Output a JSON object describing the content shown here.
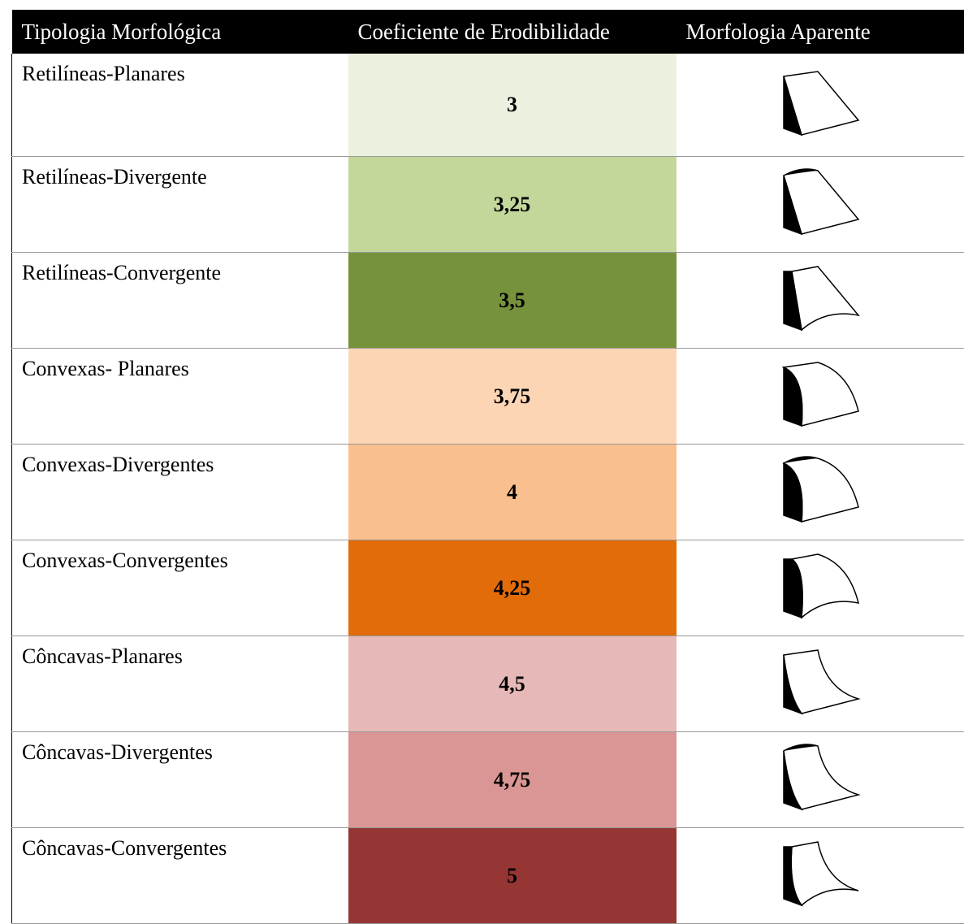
{
  "table": {
    "header": [
      "Tipologia Morfológica",
      "Coeficiente de Erodibilidade",
      "Morfologia Aparente"
    ],
    "rows": [
      {
        "name": "Retilíneas-Planares",
        "value": "3",
        "color": "#ebf1de"
      },
      {
        "name": "Retilíneas-Divergente",
        "value": "3,25",
        "color": "#c4d79b"
      },
      {
        "name": "Retilíneas-Convergente",
        "value": "3,5",
        "color": "#76933c"
      },
      {
        "name": "Convexas- Planares",
        "value": "3,75",
        "color": "#fcd5b4"
      },
      {
        "name": "Convexas-Divergentes",
        "value": "4",
        "color": "#fabf8f"
      },
      {
        "name": "Convexas-Convergentes",
        "value": "4,25",
        "color": "#e26b0a"
      },
      {
        "name": "Côncavas-Planares",
        "value": "4,5",
        "color": "#e6b8b7"
      },
      {
        "name": "Côncavas-Divergentes",
        "value": "4,75",
        "color": "#da9694"
      },
      {
        "name": "Côncavas-Convergentes",
        "value": "5",
        "color": "#963634"
      }
    ]
  }
}
